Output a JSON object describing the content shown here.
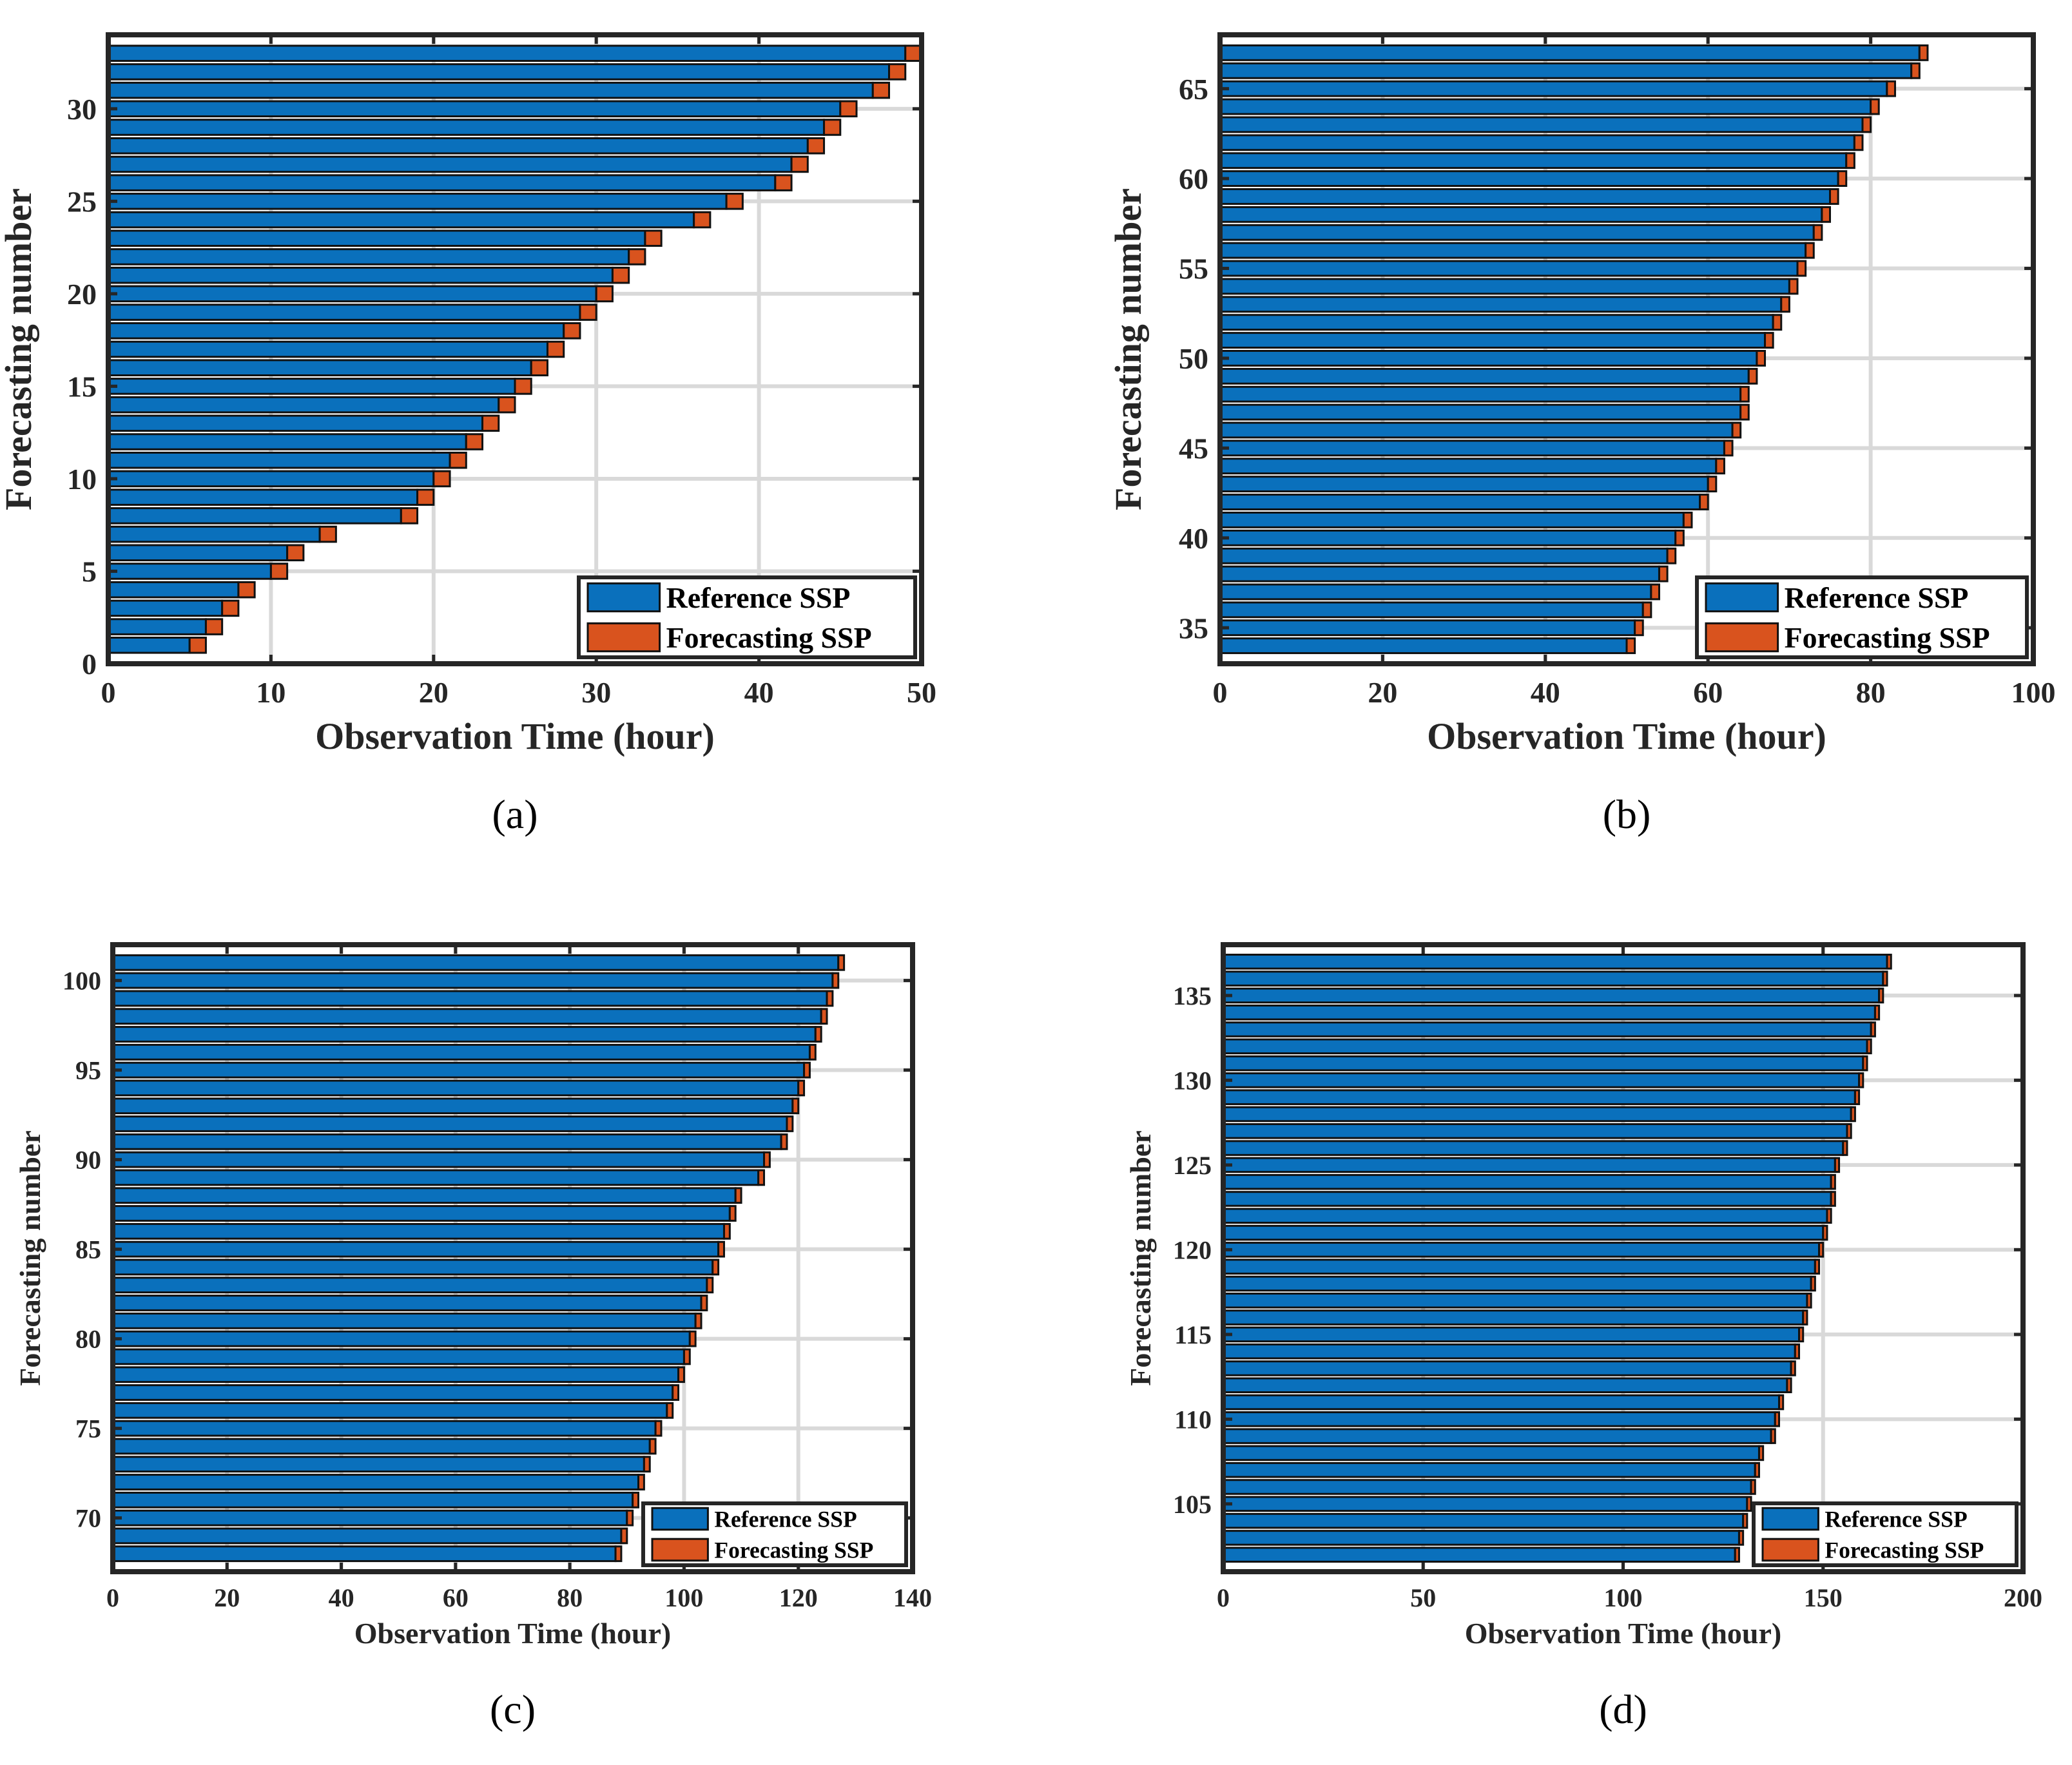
{
  "legend": {
    "reference": "Reference SSP",
    "forecasting": "Forecasting SSP"
  },
  "colors": {
    "reference": "#0a70bc",
    "forecasting": "#d9531e",
    "axis": "#262626",
    "grid": "#d9d9d9",
    "background": "#ffffff"
  },
  "chart_data": [
    {
      "panel": "(a)",
      "type": "bar",
      "orientation": "horizontal-stacked",
      "title": "",
      "xlabel": "Observation Time (hour)",
      "ylabel": "Forecasting number",
      "xlim": [
        0,
        50
      ],
      "ylim": [
        0,
        34
      ],
      "xticks": [
        0,
        10,
        20,
        30,
        40,
        50
      ],
      "yticks": [
        0,
        5,
        10,
        15,
        20,
        25,
        30
      ],
      "grid": true,
      "legend_position": "bottom-right",
      "categories": [
        1,
        2,
        3,
        4,
        5,
        6,
        7,
        8,
        9,
        10,
        11,
        12,
        13,
        14,
        15,
        16,
        17,
        18,
        19,
        20,
        21,
        22,
        23,
        24,
        25,
        26,
        27,
        28,
        29,
        30,
        31,
        32,
        33
      ],
      "series": [
        {
          "name": "Reference SSP",
          "values": [
            5,
            6,
            7,
            8,
            10,
            11,
            13,
            18,
            19,
            20,
            21,
            22,
            23,
            24,
            25,
            26,
            27,
            28,
            29,
            30,
            31,
            32,
            33,
            36,
            38,
            41,
            42,
            43,
            44,
            45,
            47,
            48,
            49
          ]
        },
        {
          "name": "Forecasting SSP",
          "values": [
            1,
            1,
            1,
            1,
            1,
            1,
            1,
            1,
            1,
            1,
            1,
            1,
            1,
            1,
            1,
            1,
            1,
            1,
            1,
            1,
            1,
            1,
            1,
            1,
            1,
            1,
            1,
            1,
            1,
            1,
            1,
            1,
            1
          ]
        }
      ]
    },
    {
      "panel": "(b)",
      "type": "bar",
      "orientation": "horizontal-stacked",
      "title": "",
      "xlabel": "Observation Time (hour)",
      "ylabel": "Forecasting number",
      "xlim": [
        0,
        100
      ],
      "ylim": [
        33,
        68
      ],
      "xticks": [
        0,
        20,
        40,
        60,
        80,
        100
      ],
      "yticks": [
        35,
        40,
        45,
        50,
        55,
        60,
        65
      ],
      "grid": true,
      "legend_position": "bottom-right",
      "categories": [
        34,
        35,
        36,
        37,
        38,
        39,
        40,
        41,
        42,
        43,
        44,
        45,
        46,
        47,
        48,
        49,
        50,
        51,
        52,
        53,
        54,
        55,
        56,
        57,
        58,
        59,
        60,
        61,
        62,
        63,
        64,
        65,
        66,
        67
      ],
      "series": [
        {
          "name": "Reference SSP",
          "values": [
            50,
            51,
            52,
            53,
            54,
            55,
            56,
            57,
            59,
            60,
            61,
            62,
            63,
            64,
            64,
            65,
            66,
            67,
            68,
            69,
            70,
            71,
            72,
            73,
            74,
            75,
            76,
            77,
            78,
            79,
            80,
            82,
            85,
            86
          ]
        },
        {
          "name": "Forecasting SSP",
          "values": [
            1,
            1,
            1,
            1,
            1,
            1,
            1,
            1,
            1,
            1,
            1,
            1,
            1,
            1,
            1,
            1,
            1,
            1,
            1,
            1,
            1,
            1,
            1,
            1,
            1,
            1,
            1,
            1,
            1,
            1,
            1,
            1,
            1,
            1
          ]
        }
      ]
    },
    {
      "panel": "(c)",
      "type": "bar",
      "orientation": "horizontal-stacked",
      "title": "",
      "xlabel": "Observation Time (hour)",
      "ylabel": "Forecasting number",
      "xlim": [
        0,
        140
      ],
      "ylim": [
        67,
        102
      ],
      "xticks": [
        0,
        20,
        40,
        60,
        80,
        100,
        120,
        140
      ],
      "yticks": [
        70,
        75,
        80,
        85,
        90,
        95,
        100
      ],
      "grid": true,
      "legend_position": "bottom-right",
      "categories": [
        68,
        69,
        70,
        71,
        72,
        73,
        74,
        75,
        76,
        77,
        78,
        79,
        80,
        81,
        82,
        83,
        84,
        85,
        86,
        87,
        88,
        89,
        90,
        91,
        92,
        93,
        94,
        95,
        96,
        97,
        98,
        99,
        100,
        101
      ],
      "series": [
        {
          "name": "Reference SSP",
          "values": [
            88,
            89,
            90,
            91,
            92,
            93,
            94,
            95,
            97,
            98,
            99,
            100,
            101,
            102,
            103,
            104,
            105,
            106,
            107,
            108,
            109,
            113,
            114,
            117,
            118,
            119,
            120,
            121,
            122,
            123,
            124,
            125,
            126,
            127
          ]
        },
        {
          "name": "Forecasting SSP",
          "values": [
            1,
            1,
            1,
            1,
            1,
            1,
            1,
            1,
            1,
            1,
            1,
            1,
            1,
            1,
            1,
            1,
            1,
            1,
            1,
            1,
            1,
            1,
            1,
            1,
            1,
            1,
            1,
            1,
            1,
            1,
            1,
            1,
            1,
            1
          ]
        }
      ]
    },
    {
      "panel": "(d)",
      "type": "bar",
      "orientation": "horizontal-stacked",
      "title": "",
      "xlabel": "Observation Time (hour)",
      "ylabel": "Forecasting number",
      "xlim": [
        0,
        200
      ],
      "ylim": [
        101,
        138
      ],
      "xticks": [
        0,
        50,
        100,
        150,
        200
      ],
      "yticks": [
        105,
        110,
        115,
        120,
        125,
        130,
        135
      ],
      "grid": true,
      "legend_position": "bottom-right",
      "categories": [
        102,
        103,
        104,
        105,
        106,
        107,
        108,
        109,
        110,
        111,
        112,
        113,
        114,
        115,
        116,
        117,
        118,
        119,
        120,
        121,
        122,
        123,
        124,
        125,
        126,
        127,
        128,
        129,
        130,
        131,
        132,
        133,
        134,
        135,
        136,
        137
      ],
      "series": [
        {
          "name": "Reference SSP",
          "values": [
            128,
            129,
            130,
            131,
            132,
            133,
            134,
            137,
            138,
            139,
            141,
            142,
            143,
            144,
            145,
            146,
            147,
            148,
            149,
            150,
            151,
            152,
            152,
            153,
            155,
            156,
            157,
            158,
            159,
            160,
            161,
            162,
            163,
            164,
            165,
            166
          ]
        },
        {
          "name": "Forecasting SSP",
          "values": [
            1,
            1,
            1,
            1,
            1,
            1,
            1,
            1,
            1,
            1,
            1,
            1,
            1,
            1,
            1,
            1,
            1,
            1,
            1,
            1,
            1,
            1,
            1,
            1,
            1,
            1,
            1,
            1,
            1,
            1,
            1,
            1,
            1,
            1,
            1,
            1
          ]
        }
      ]
    }
  ]
}
